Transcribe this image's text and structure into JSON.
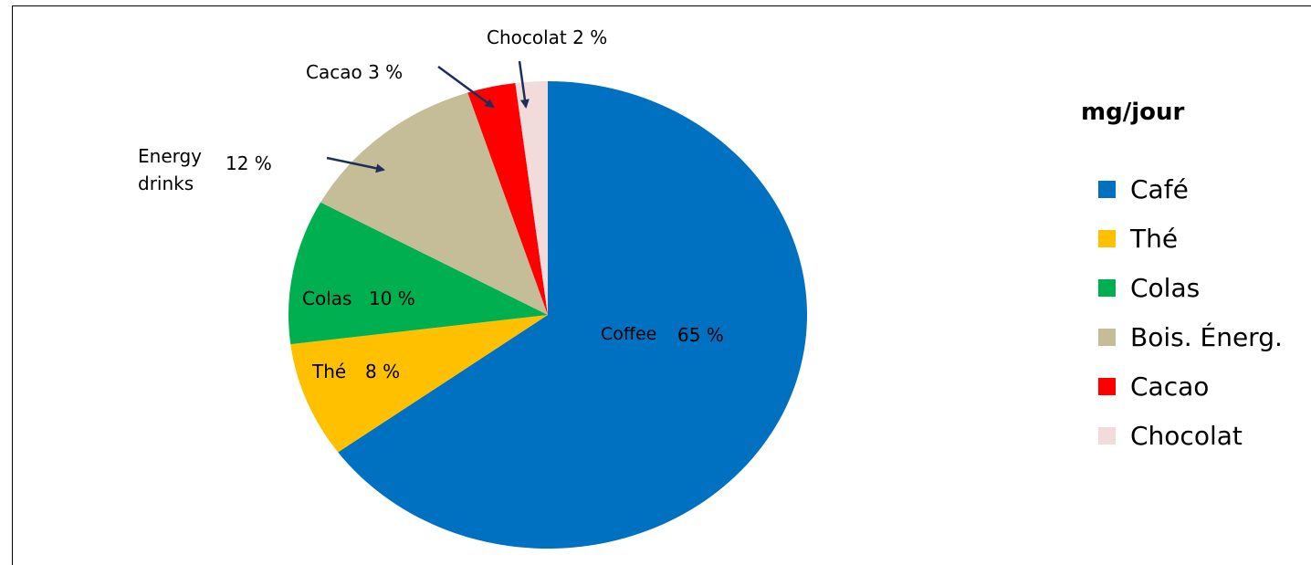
{
  "chart_data": {
    "type": "pie",
    "legend_title": "mg/jour",
    "legend_position": "right",
    "start_angle_deg": 90,
    "direction": "clockwise",
    "slices": [
      {
        "name": "Café",
        "value": 65,
        "color": "#0070C0",
        "label_parts": [
          "Coffee",
          "65 %"
        ]
      },
      {
        "name": "Thé",
        "value": 8,
        "color": "#FFC000",
        "label_parts": [
          "Thé",
          "8 %"
        ]
      },
      {
        "name": "Colas",
        "value": 10,
        "color": "#00B050",
        "label_parts": [
          "Colas",
          "10 %"
        ]
      },
      {
        "name": "Bois. Énerg.",
        "value": 12,
        "color": "#C4BD97",
        "label_parts": [
          "Energy",
          "drinks",
          "12 %"
        ]
      },
      {
        "name": "Cacao",
        "value": 3,
        "color": "#FF0000",
        "label_parts": [
          "Cacao 3 %"
        ]
      },
      {
        "name": "Chocolat",
        "value": 2,
        "color": "#F2DCDB",
        "label_parts": [
          "Chocolat 2 %"
        ]
      }
    ]
  }
}
